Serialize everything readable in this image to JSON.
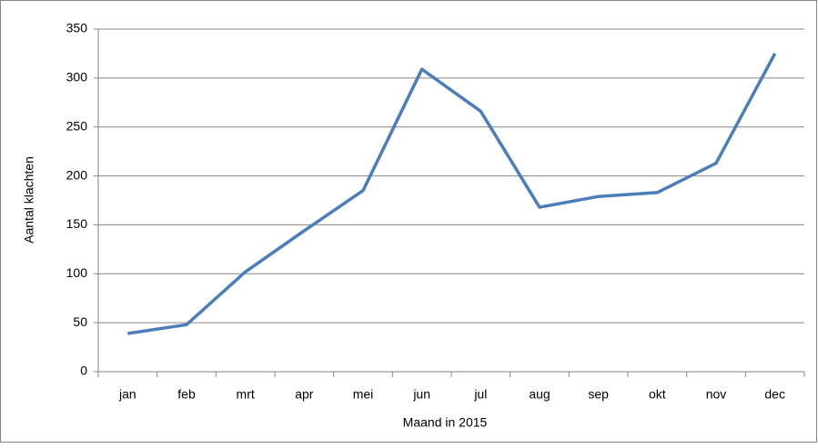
{
  "chart_data": {
    "type": "line",
    "x_label": "Maand in 2015",
    "y_label": "Aantal klachten",
    "categories": [
      "jan",
      "feb",
      "mrt",
      "apr",
      "mei",
      "jun",
      "jul",
      "aug",
      "sep",
      "okt",
      "nov",
      "dec"
    ],
    "series": [
      {
        "name": "Aantal klachten",
        "color": "#4a7ebb",
        "values": [
          39,
          48,
          102,
          144,
          185,
          309,
          266,
          168,
          179,
          183,
          213,
          325
        ]
      }
    ],
    "ylim": [
      0,
      350
    ],
    "yticks": [
      0,
      50,
      100,
      150,
      200,
      250,
      300,
      350
    ],
    "grid": true
  }
}
